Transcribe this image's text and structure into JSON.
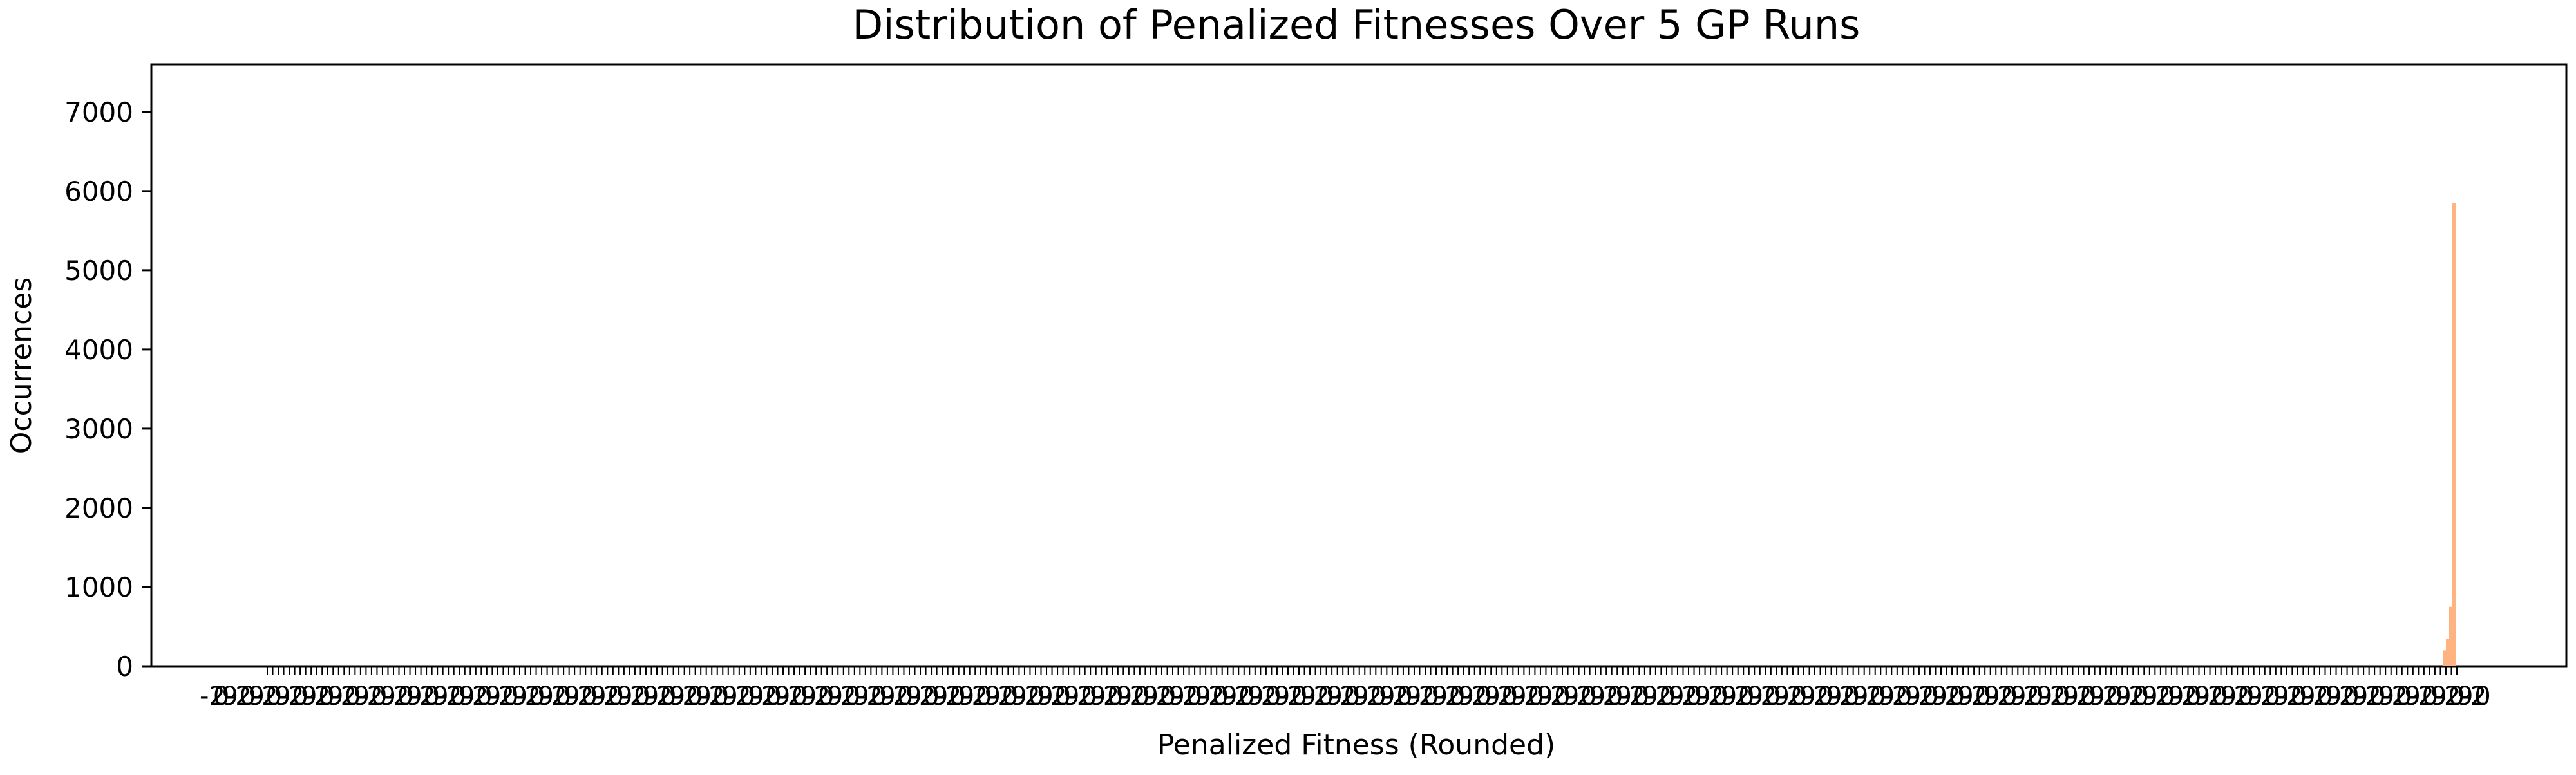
{
  "chart_data": {
    "type": "bar",
    "title": "Distribution of Penalized Fitnesses Over 5 GP Runs",
    "xlabel": "Penalized Fitness (Rounded)",
    "ylabel": "Occurrences",
    "ylim": [
      0,
      7600
    ],
    "yticks": [
      0,
      1000,
      2000,
      3000,
      4000,
      5000,
      6000,
      7000
    ],
    "grid": false,
    "bar_color": "#ffb380",
    "x_tick_labels_note": "dense overlapping tick labels (illegible)",
    "peak_bars": [
      {
        "x": 0,
        "value": 5850
      },
      {
        "x": -1,
        "value": 750
      },
      {
        "x": -2,
        "value": 350
      },
      {
        "x": -3,
        "value": 200
      }
    ]
  }
}
